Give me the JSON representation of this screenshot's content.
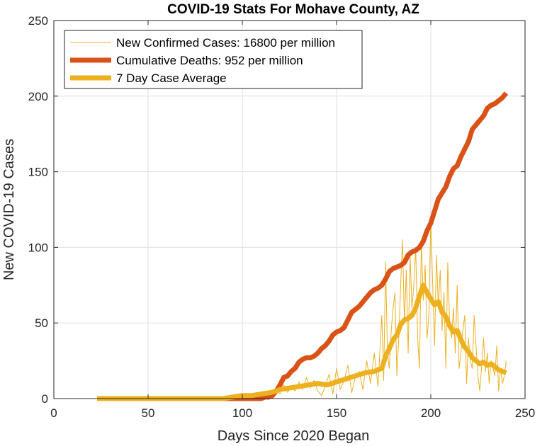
{
  "chart_data": {
    "type": "line",
    "title": "COVID-19 Stats For Mohave County, AZ",
    "xlabel": "Days Since 2020 Began",
    "ylabel": "New COVID-19 Cases",
    "xlim": [
      0,
      250
    ],
    "ylim": [
      0,
      250
    ],
    "xticks": [
      "0",
      "50",
      "100",
      "150",
      "200",
      "250"
    ],
    "yticks": [
      "0",
      "50",
      "100",
      "150",
      "200",
      "250"
    ],
    "grid": true,
    "legend_position": "top-left",
    "series": [
      {
        "name": "New Confirmed Cases: 16800 per million",
        "color": "#EDB120",
        "style": "thin",
        "x": [
          23,
          30,
          40,
          50,
          60,
          70,
          80,
          88,
          92,
          96,
          100,
          104,
          108,
          112,
          116,
          118,
          120,
          122,
          124,
          126,
          128,
          130,
          132,
          134,
          136,
          138,
          140,
          142,
          144,
          146,
          148,
          150,
          152,
          154,
          156,
          158,
          160,
          162,
          164,
          166,
          168,
          170,
          172,
          174,
          175,
          176,
          177,
          178,
          179,
          180,
          181,
          182,
          183,
          184,
          185,
          186,
          187,
          188,
          189,
          190,
          191,
          192,
          193,
          194,
          195,
          196,
          197,
          198,
          199,
          200,
          201,
          202,
          203,
          204,
          205,
          206,
          207,
          208,
          209,
          210,
          211,
          212,
          213,
          214,
          215,
          216,
          217,
          218,
          219,
          220,
          221,
          222,
          223,
          224,
          225,
          226,
          227,
          228,
          229,
          230,
          231,
          232,
          233,
          234,
          235,
          236,
          237,
          238,
          239,
          240
        ],
        "y": [
          0,
          0,
          0,
          0,
          0,
          0,
          0,
          0,
          1,
          0,
          2,
          1,
          3,
          1,
          4,
          6,
          3,
          9,
          4,
          8,
          5,
          11,
          6,
          14,
          7,
          12,
          5,
          2,
          8,
          16,
          3,
          20,
          6,
          12,
          22,
          4,
          14,
          18,
          6,
          25,
          10,
          30,
          8,
          55,
          12,
          90,
          30,
          20,
          45,
          60,
          70,
          15,
          40,
          75,
          105,
          50,
          85,
          30,
          95,
          60,
          75,
          100,
          40,
          20,
          105,
          65,
          88,
          40,
          55,
          120,
          75,
          35,
          95,
          60,
          85,
          45,
          70,
          20,
          90,
          50,
          40,
          60,
          30,
          75,
          20,
          30,
          45,
          55,
          10,
          40,
          25,
          20,
          55,
          35,
          15,
          5,
          22,
          40,
          18,
          30,
          10,
          25,
          20,
          15,
          35,
          5,
          20,
          10,
          15,
          25
        ]
      },
      {
        "name": "Cumulative Deaths: 952 per million",
        "color": "#D95319",
        "style": "thick",
        "x": [
          23,
          30,
          40,
          50,
          60,
          70,
          80,
          90,
          95,
          100,
          105,
          110,
          112,
          114,
          116,
          118,
          120,
          122,
          124,
          126,
          128,
          130,
          132,
          134,
          136,
          138,
          140,
          142,
          144,
          146,
          148,
          150,
          152,
          154,
          156,
          158,
          160,
          162,
          164,
          166,
          168,
          170,
          172,
          174,
          176,
          178,
          180,
          182,
          184,
          186,
          188,
          190,
          192,
          194,
          196,
          198,
          200,
          202,
          204,
          206,
          208,
          210,
          212,
          214,
          216,
          218,
          220,
          222,
          224,
          226,
          228,
          230,
          232,
          234,
          236,
          238,
          240
        ],
        "y": [
          0,
          0,
          0,
          0,
          0,
          0,
          0,
          0,
          0,
          0,
          0,
          0,
          1,
          1,
          2,
          5,
          9,
          14,
          15,
          18,
          20,
          24,
          26,
          27,
          27,
          28,
          30,
          33,
          35,
          38,
          42,
          44,
          45,
          47,
          52,
          57,
          59,
          61,
          64,
          67,
          70,
          72,
          73,
          75,
          79,
          84,
          86,
          87,
          88,
          90,
          95,
          97,
          98,
          100,
          104,
          111,
          116,
          124,
          132,
          136,
          140,
          147,
          152,
          154,
          160,
          165,
          170,
          178,
          181,
          184,
          187,
          192,
          194,
          195,
          197,
          199,
          202
        ]
      },
      {
        "name": "7 Day Case Average",
        "color": "#EDB120",
        "style": "thick",
        "x": [
          23,
          40,
          60,
          80,
          90,
          95,
          100,
          105,
          110,
          115,
          118,
          120,
          125,
          130,
          135,
          140,
          145,
          150,
          155,
          160,
          165,
          170,
          174,
          176,
          178,
          180,
          182,
          184,
          186,
          188,
          190,
          192,
          194,
          196,
          198,
          200,
          202,
          204,
          206,
          208,
          210,
          212,
          214,
          216,
          218,
          220,
          222,
          224,
          226,
          228,
          230,
          232,
          234,
          236,
          238,
          240
        ],
        "y": [
          0,
          0,
          0,
          0,
          0,
          1,
          2,
          2,
          3,
          4,
          5,
          6,
          7,
          8,
          9,
          10,
          9,
          11,
          13,
          15,
          17,
          18,
          20,
          28,
          33,
          39,
          42,
          49,
          52,
          53,
          55,
          60,
          68,
          75,
          70,
          66,
          62,
          64,
          57,
          54,
          48,
          44,
          45,
          39,
          34,
          31,
          27,
          25,
          23,
          24,
          22,
          23,
          21,
          19,
          18,
          17
        ]
      }
    ]
  }
}
